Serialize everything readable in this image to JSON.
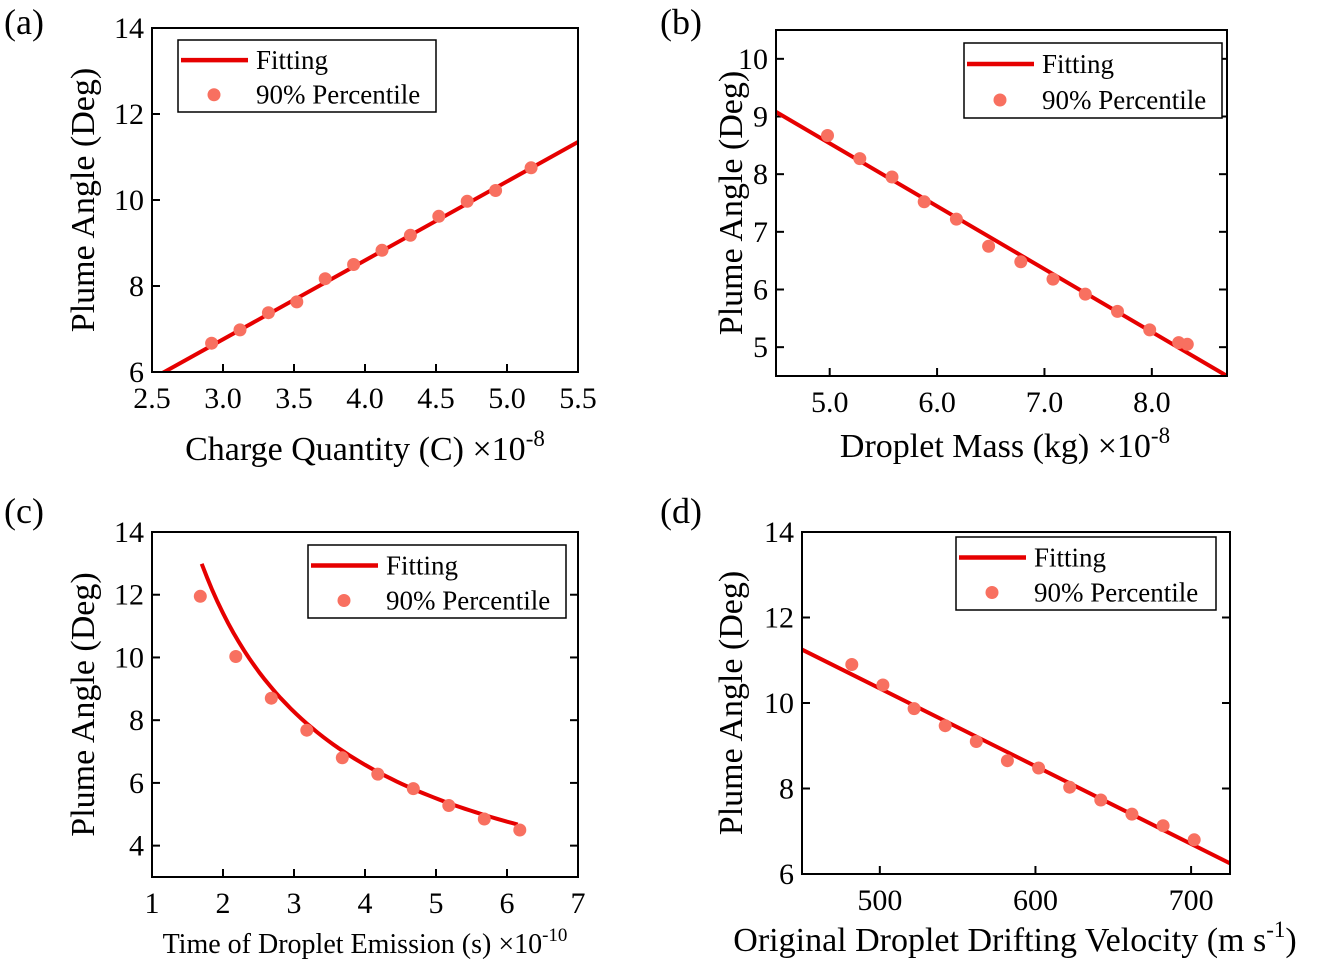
{
  "figure": {
    "fit_color": "#e60000",
    "point_color": "#f87060"
  },
  "chart_data": [
    {
      "type": "scatter",
      "panel_label": "(a)",
      "title": "",
      "xlabel": "Charge Quantity (C)",
      "x_multiplier": "×10",
      "x_exponent": "-8",
      "ylabel": "Plume Angle (Deg)",
      "xlim": [
        2.5,
        5.5
      ],
      "ylim": [
        6,
        14
      ],
      "xticks": [
        2.5,
        3.0,
        3.5,
        4.0,
        4.5,
        5.0,
        5.5
      ],
      "xtick_labels": [
        "2.5",
        "3.0",
        "3.5",
        "4.0",
        "4.5",
        "5.0",
        "5.5"
      ],
      "yticks": [
        6,
        8,
        10,
        12,
        14
      ],
      "ytick_labels": [
        "6",
        "8",
        "10",
        "12",
        "14"
      ],
      "legend": {
        "position": "top-left",
        "fit_label": "Fitting",
        "points_label": "90% Percentile"
      },
      "series": [
        {
          "name": "90% Percentile",
          "kind": "points",
          "x": [
            2.92,
            3.12,
            3.32,
            3.52,
            3.72,
            3.92,
            4.12,
            4.32,
            4.52,
            4.72,
            4.92,
            5.17
          ],
          "y": [
            6.67,
            6.98,
            7.38,
            7.63,
            8.17,
            8.5,
            8.83,
            9.18,
            9.62,
            9.97,
            10.22,
            10.75
          ]
        },
        {
          "name": "Fitting",
          "kind": "line",
          "fit": {
            "type": "linear",
            "x": [
              2.56,
              5.5
            ],
            "y": [
              5.95,
              11.35
            ]
          }
        }
      ]
    },
    {
      "type": "scatter",
      "panel_label": "(b)",
      "title": "",
      "xlabel": "Droplet Mass (kg)",
      "x_multiplier": "×10",
      "x_exponent": "-8",
      "ylabel": "Plume Angle (Deg)",
      "xlim": [
        4.5,
        8.7
      ],
      "ylim": [
        4.5,
        10.5
      ],
      "xticks": [
        5.0,
        6.0,
        7.0,
        8.0
      ],
      "xtick_labels": [
        "5.0",
        "6.0",
        "7.0",
        "8.0"
      ],
      "yticks": [
        5,
        6,
        7,
        8,
        9,
        10
      ],
      "ytick_labels": [
        "5",
        "6",
        "7",
        "8",
        "9",
        "10"
      ],
      "legend": {
        "position": "top-right",
        "fit_label": "Fitting",
        "points_label": "90% Percentile"
      },
      "series": [
        {
          "name": "90% Percentile",
          "kind": "points",
          "x": [
            4.98,
            5.28,
            5.58,
            5.88,
            6.18,
            6.48,
            6.78,
            7.08,
            7.38,
            7.68,
            7.98,
            8.25,
            8.33
          ],
          "y": [
            8.67,
            8.27,
            7.95,
            7.52,
            7.22,
            6.75,
            6.48,
            6.18,
            5.92,
            5.62,
            5.3,
            5.08,
            5.05
          ]
        },
        {
          "name": "Fitting",
          "kind": "line",
          "fit": {
            "type": "linear",
            "x": [
              4.5,
              8.7
            ],
            "y": [
              9.08,
              4.5
            ]
          }
        }
      ]
    },
    {
      "type": "scatter",
      "panel_label": "(c)",
      "title": "",
      "xlabel": "Time of Droplet Emission (s)",
      "x_multiplier": "×10",
      "x_exponent": "-10",
      "ylabel": "Plume Angle (Deg)",
      "xlim": [
        1,
        7
      ],
      "ylim": [
        3,
        14
      ],
      "xticks": [
        1,
        2,
        3,
        4,
        5,
        6,
        7
      ],
      "xtick_labels": [
        "1",
        "2",
        "3",
        "4",
        "5",
        "6",
        "7"
      ],
      "yticks": [
        4,
        6,
        8,
        10,
        12,
        14
      ],
      "ytick_labels": [
        "4",
        "6",
        "8",
        "10",
        "12",
        "14"
      ],
      "legend": {
        "position": "top-right",
        "fit_label": "Fitting",
        "points_label": "90% Percentile"
      },
      "series": [
        {
          "name": "90% Percentile",
          "kind": "points",
          "x": [
            1.68,
            2.18,
            2.68,
            3.18,
            3.68,
            4.18,
            4.68,
            5.18,
            5.68,
            6.18
          ],
          "y": [
            11.95,
            10.03,
            8.7,
            7.68,
            6.8,
            6.28,
            5.82,
            5.28,
            4.85,
            4.5
          ]
        },
        {
          "name": "Fitting",
          "kind": "line",
          "fit": {
            "type": "power",
            "a": 19.8,
            "b": 0.795,
            "x": [
              1.7,
              6.15
            ]
          }
        }
      ]
    },
    {
      "type": "scatter",
      "panel_label": "(d)",
      "title": "",
      "xlabel": "Original Droplet Drifting Velocity (m s",
      "x_exponent": "-1",
      "x_suffix": ")",
      "ylabel": "Plume Angle (Deg)",
      "xlim": [
        450,
        725
      ],
      "ylim": [
        6,
        14
      ],
      "xticks": [
        500,
        600,
        700
      ],
      "xtick_labels": [
        "500",
        "600",
        "700"
      ],
      "yticks": [
        6,
        8,
        10,
        12,
        14
      ],
      "ytick_labels": [
        "6",
        "8",
        "10",
        "12",
        "14"
      ],
      "legend": {
        "position": "top-right",
        "fit_label": "Fitting",
        "points_label": "90% Percentile"
      },
      "series": [
        {
          "name": "90% Percentile",
          "kind": "points",
          "x": [
            482,
            502,
            522,
            542,
            562,
            582,
            602,
            622,
            642,
            662,
            682,
            702
          ],
          "y": [
            10.9,
            10.42,
            9.87,
            9.47,
            9.1,
            8.65,
            8.48,
            8.03,
            7.73,
            7.4,
            7.13,
            6.8
          ]
        },
        {
          "name": "Fitting",
          "kind": "line",
          "fit": {
            "type": "linear",
            "x": [
              450,
              725
            ],
            "y": [
              11.25,
              6.25
            ]
          }
        }
      ]
    }
  ]
}
